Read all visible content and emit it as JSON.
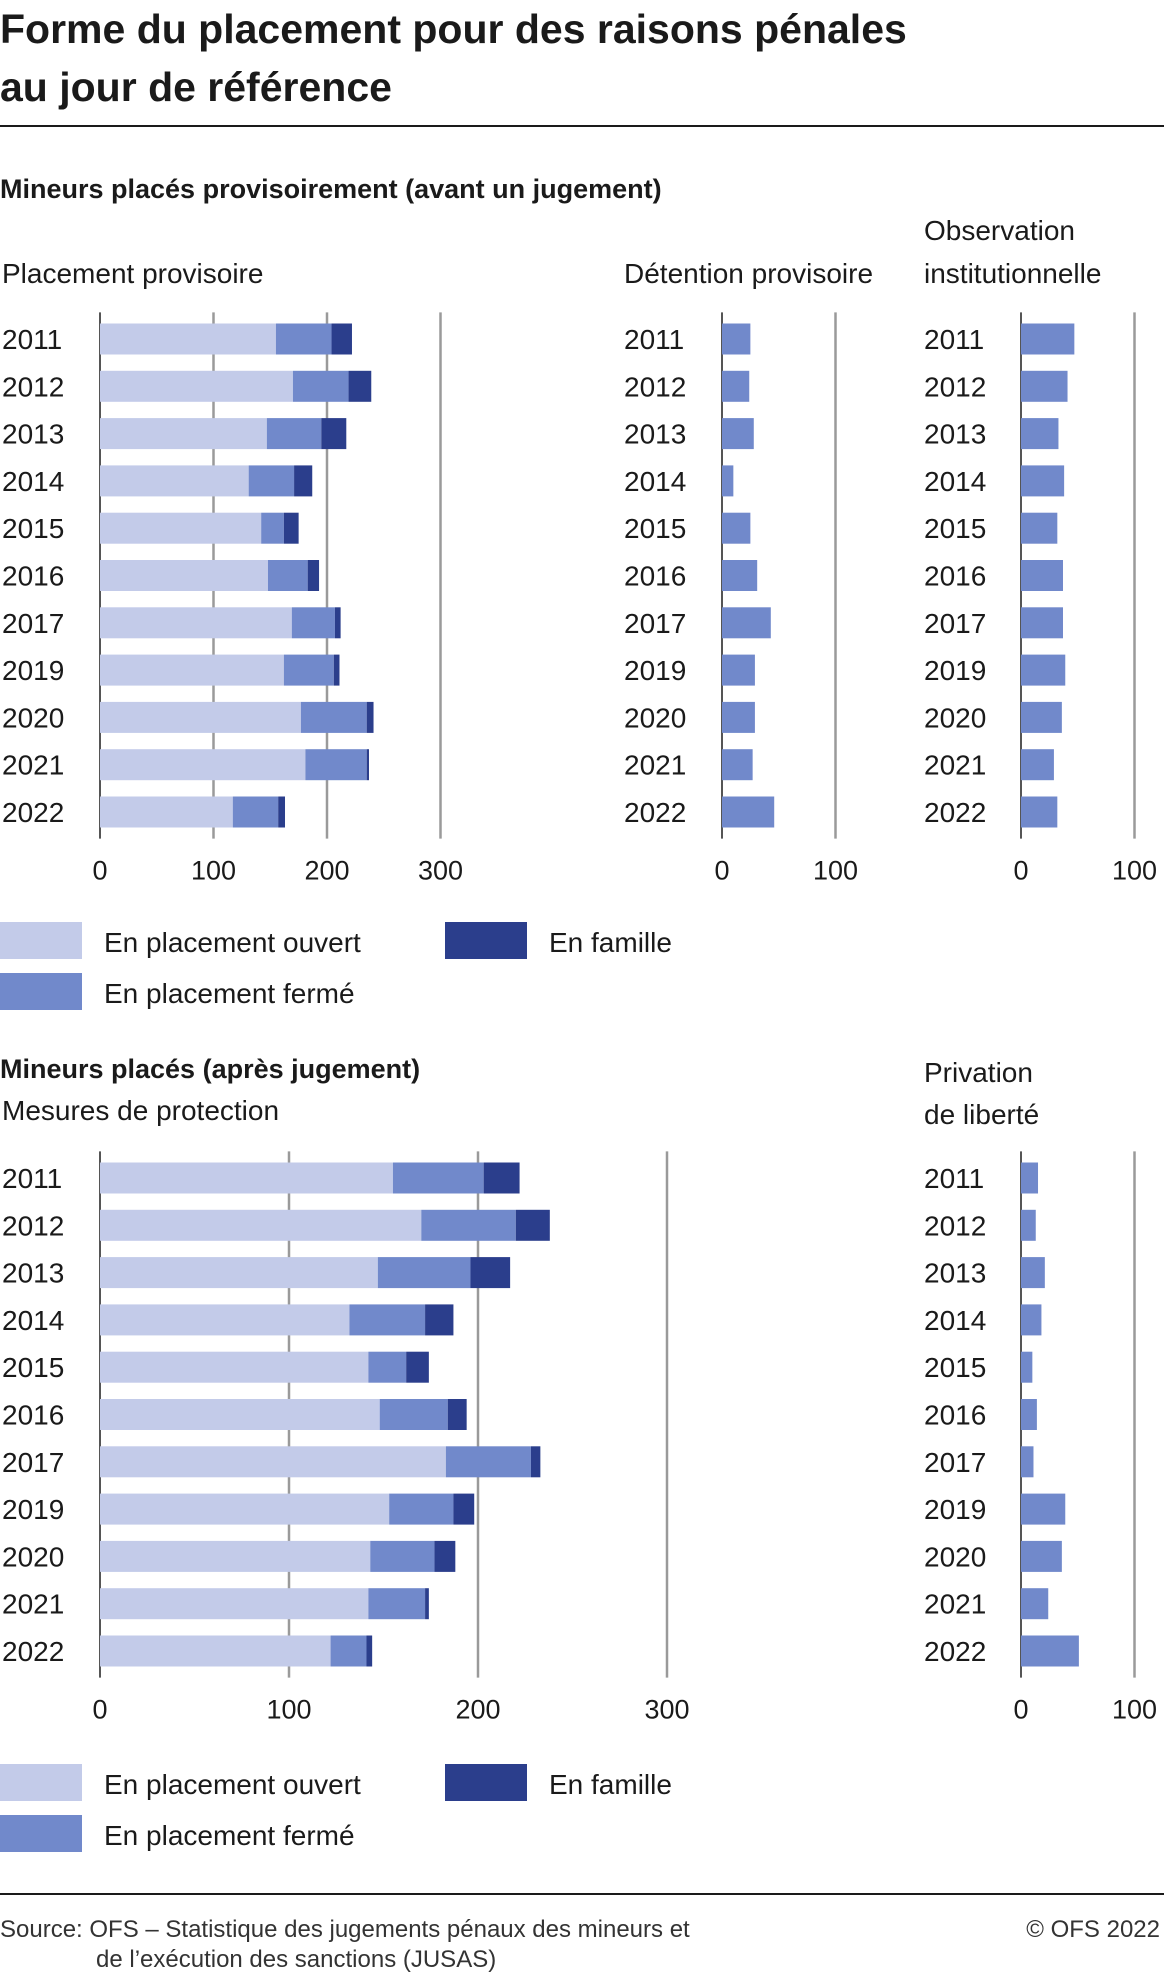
{
  "title": {
    "line1": "Forme du placement pour des raisons pénales",
    "line2": "au jour de référence"
  },
  "colors": {
    "ouvert": "#c3cbe9",
    "ferme": "#7189cb",
    "famille": "#2b3e8c",
    "single": "#7189cb",
    "gridline": "#9a9a9a",
    "text": "#1a1a1a"
  },
  "sections": {
    "provisional": {
      "heading": "Mineurs placés provisoirement (avant un jugement)"
    },
    "after": {
      "heading": "Mineurs placés (après jugement)"
    }
  },
  "legend": {
    "ouvert": "En placement ouvert",
    "ferme": "En placement fermé",
    "famille": "En famille"
  },
  "chart_data": [
    {
      "id": "placement-provisoire",
      "type": "bar",
      "orientation": "horizontal",
      "stacked": true,
      "title": [
        "Placement provisoire"
      ],
      "categories": [
        "2011",
        "2012",
        "2013",
        "2014",
        "2015",
        "2016",
        "2017",
        "2019",
        "2020",
        "2021",
        "2022"
      ],
      "series": [
        {
          "key": "ouvert",
          "name": "En placement ouvert",
          "values": [
            155,
            170,
            147,
            131,
            142,
            148,
            169,
            162,
            177,
            181,
            117
          ]
        },
        {
          "key": "ferme",
          "name": "En placement fermé",
          "values": [
            49,
            49,
            48,
            40,
            20,
            35,
            38,
            44,
            58,
            54,
            40
          ]
        },
        {
          "key": "famille",
          "name": "En famille",
          "values": [
            18,
            20,
            22,
            16,
            13,
            10,
            5,
            5,
            6,
            2,
            6
          ]
        }
      ],
      "xlim": [
        0,
        300
      ],
      "xticks": [
        0,
        100,
        200,
        300
      ]
    },
    {
      "id": "detention-provisoire",
      "type": "bar",
      "orientation": "horizontal",
      "title": [
        "Détention provisoire"
      ],
      "categories": [
        "2011",
        "2012",
        "2013",
        "2014",
        "2015",
        "2016",
        "2017",
        "2019",
        "2020",
        "2021",
        "2022"
      ],
      "values": [
        25,
        24,
        28,
        10,
        25,
        31,
        43,
        29,
        29,
        27,
        46
      ],
      "xlim": [
        0,
        100
      ],
      "xticks": [
        0,
        100
      ]
    },
    {
      "id": "observation-institutionnelle",
      "type": "bar",
      "orientation": "horizontal",
      "title": [
        "Observation",
        "institutionnelle"
      ],
      "categories": [
        "2011",
        "2012",
        "2013",
        "2014",
        "2015",
        "2016",
        "2017",
        "2019",
        "2020",
        "2021",
        "2022"
      ],
      "values": [
        47,
        41,
        33,
        38,
        32,
        37,
        37,
        39,
        36,
        29,
        32
      ],
      "xlim": [
        0,
        100
      ],
      "xticks": [
        0,
        100
      ]
    },
    {
      "id": "mesures-de-protection",
      "type": "bar",
      "orientation": "horizontal",
      "stacked": true,
      "title": [
        "Mesures de protection"
      ],
      "categories": [
        "2011",
        "2012",
        "2013",
        "2014",
        "2015",
        "2016",
        "2017",
        "2019",
        "2020",
        "2021",
        "2022"
      ],
      "series": [
        {
          "key": "ouvert",
          "name": "En placement ouvert",
          "values": [
            155,
            170,
            147,
            132,
            142,
            148,
            183,
            153,
            143,
            142,
            122
          ]
        },
        {
          "key": "ferme",
          "name": "En placement fermé",
          "values": [
            48,
            50,
            49,
            40,
            20,
            36,
            45,
            34,
            34,
            30,
            19
          ]
        },
        {
          "key": "famille",
          "name": "En famille",
          "values": [
            19,
            18,
            21,
            15,
            12,
            10,
            5,
            11,
            11,
            2,
            3
          ]
        }
      ],
      "xlim": [
        0,
        300
      ],
      "xticks": [
        0,
        100,
        200,
        300
      ]
    },
    {
      "id": "privation-de-liberte",
      "type": "bar",
      "orientation": "horizontal",
      "title": [
        "Privation",
        "de liberté"
      ],
      "categories": [
        "2011",
        "2012",
        "2013",
        "2014",
        "2015",
        "2016",
        "2017",
        "2019",
        "2020",
        "2021",
        "2022"
      ],
      "values": [
        15,
        13,
        21,
        18,
        10,
        14,
        11,
        39,
        36,
        24,
        51
      ],
      "xlim": [
        0,
        100
      ],
      "xticks": [
        0,
        100
      ]
    }
  ],
  "footer": {
    "source_line1": "Source: OFS – Statistique des jugements pénaux des mineurs et",
    "source_line2": "de l’exécution des sanctions (JUSAS)",
    "copyright": "© OFS 2022"
  }
}
